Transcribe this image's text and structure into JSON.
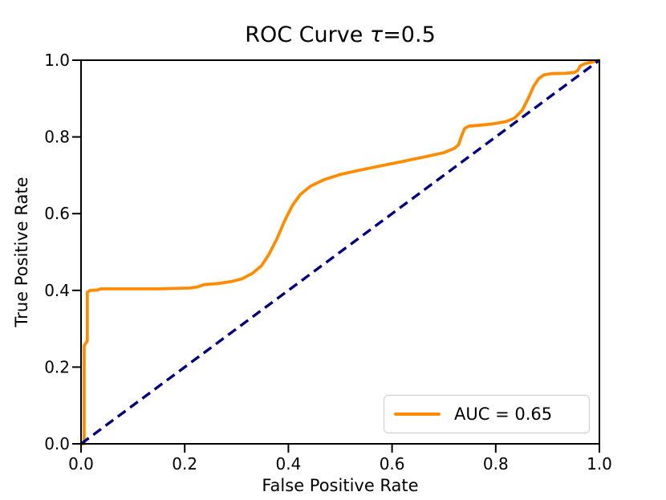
{
  "chart_data": {
    "type": "line",
    "title": {
      "prefix": "ROC Curve ",
      "tau": "τ",
      "suffix": "=0.5"
    },
    "xlabel": "False Positive Rate",
    "ylabel": "True Positive Rate",
    "xlim": [
      0.0,
      1.0
    ],
    "ylim": [
      0.0,
      1.0
    ],
    "grid": false,
    "x_ticks": {
      "values": [
        0.0,
        0.2,
        0.4,
        0.6,
        0.8,
        1.0
      ],
      "labels": [
        "0.0",
        "0.2",
        "0.4",
        "0.6",
        "0.8",
        "1.0"
      ]
    },
    "y_ticks": {
      "values": [
        0.0,
        0.2,
        0.4,
        0.6,
        0.8,
        1.0
      ],
      "labels": [
        "0.0",
        "0.2",
        "0.4",
        "0.6",
        "0.8",
        "1.0"
      ]
    },
    "series": [
      {
        "name": "roc-curve",
        "color": "#ff8c00",
        "style": "solid",
        "line_width": 3.8,
        "points": [
          [
            0.0,
            0.0
          ],
          [
            0.006,
            0.0
          ],
          [
            0.006,
            0.255
          ],
          [
            0.009,
            0.262
          ],
          [
            0.012,
            0.268
          ],
          [
            0.012,
            0.395
          ],
          [
            0.018,
            0.4
          ],
          [
            0.032,
            0.401
          ],
          [
            0.038,
            0.404
          ],
          [
            0.08,
            0.404
          ],
          [
            0.15,
            0.404
          ],
          [
            0.21,
            0.406
          ],
          [
            0.225,
            0.409
          ],
          [
            0.238,
            0.415
          ],
          [
            0.265,
            0.418
          ],
          [
            0.29,
            0.423
          ],
          [
            0.31,
            0.43
          ],
          [
            0.33,
            0.444
          ],
          [
            0.348,
            0.464
          ],
          [
            0.363,
            0.495
          ],
          [
            0.378,
            0.535
          ],
          [
            0.393,
            0.582
          ],
          [
            0.408,
            0.622
          ],
          [
            0.423,
            0.65
          ],
          [
            0.443,
            0.672
          ],
          [
            0.468,
            0.688
          ],
          [
            0.5,
            0.702
          ],
          [
            0.54,
            0.714
          ],
          [
            0.58,
            0.725
          ],
          [
            0.62,
            0.736
          ],
          [
            0.66,
            0.747
          ],
          [
            0.7,
            0.759
          ],
          [
            0.72,
            0.77
          ],
          [
            0.728,
            0.779
          ],
          [
            0.734,
            0.802
          ],
          [
            0.74,
            0.822
          ],
          [
            0.748,
            0.828
          ],
          [
            0.765,
            0.83
          ],
          [
            0.795,
            0.834
          ],
          [
            0.82,
            0.84
          ],
          [
            0.836,
            0.849
          ],
          [
            0.851,
            0.869
          ],
          [
            0.863,
            0.901
          ],
          [
            0.873,
            0.932
          ],
          [
            0.883,
            0.952
          ],
          [
            0.893,
            0.962
          ],
          [
            0.908,
            0.965
          ],
          [
            0.935,
            0.966
          ],
          [
            0.952,
            0.968
          ],
          [
            0.958,
            0.973
          ],
          [
            0.963,
            0.985
          ],
          [
            0.972,
            0.991
          ],
          [
            0.985,
            0.995
          ],
          [
            1.0,
            1.0
          ]
        ]
      },
      {
        "name": "chance-diagonal",
        "color": "#000080",
        "style": "dashed",
        "line_width": 3.4,
        "points": [
          [
            0.0,
            0.0
          ],
          [
            1.0,
            1.0
          ]
        ]
      }
    ],
    "legend": {
      "label": "AUC = 0.65",
      "line_color": "#ff8c00",
      "position": "lower right"
    },
    "colors": {
      "axis": "#000000",
      "background": "#ffffff",
      "legend_border": "#cccccc"
    }
  }
}
